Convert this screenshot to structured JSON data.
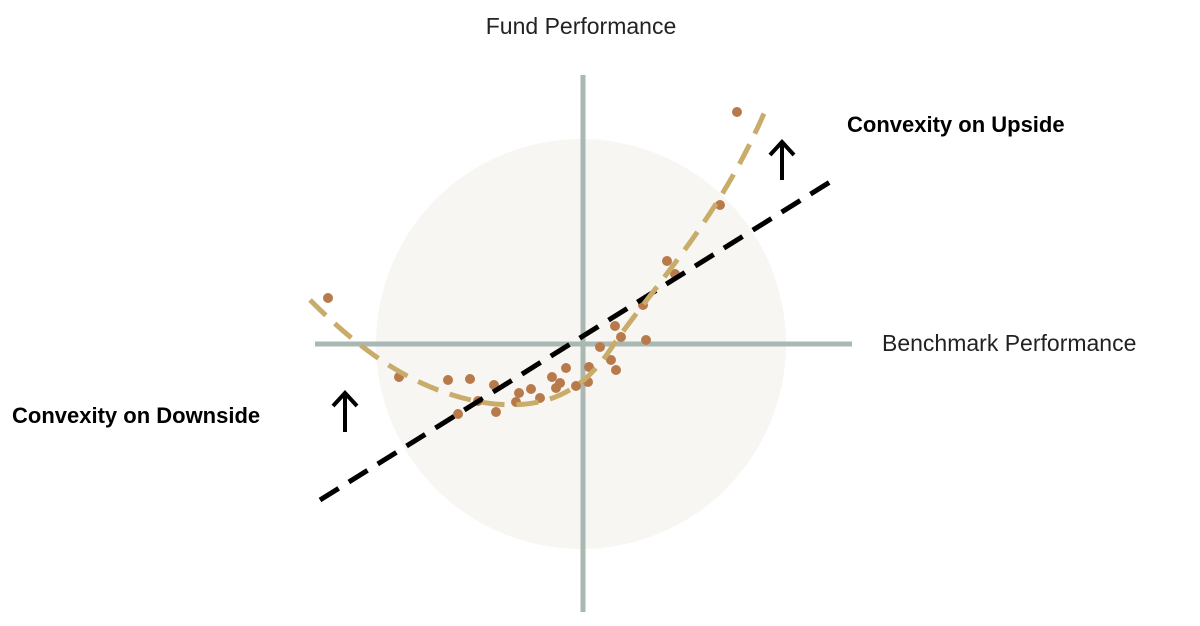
{
  "y_axis_label": "Fund Performance",
  "x_axis_label": "Benchmark Performance",
  "annotations": {
    "upside": "Convexity on Upside",
    "downside": "Convexity on Downside"
  }
}
